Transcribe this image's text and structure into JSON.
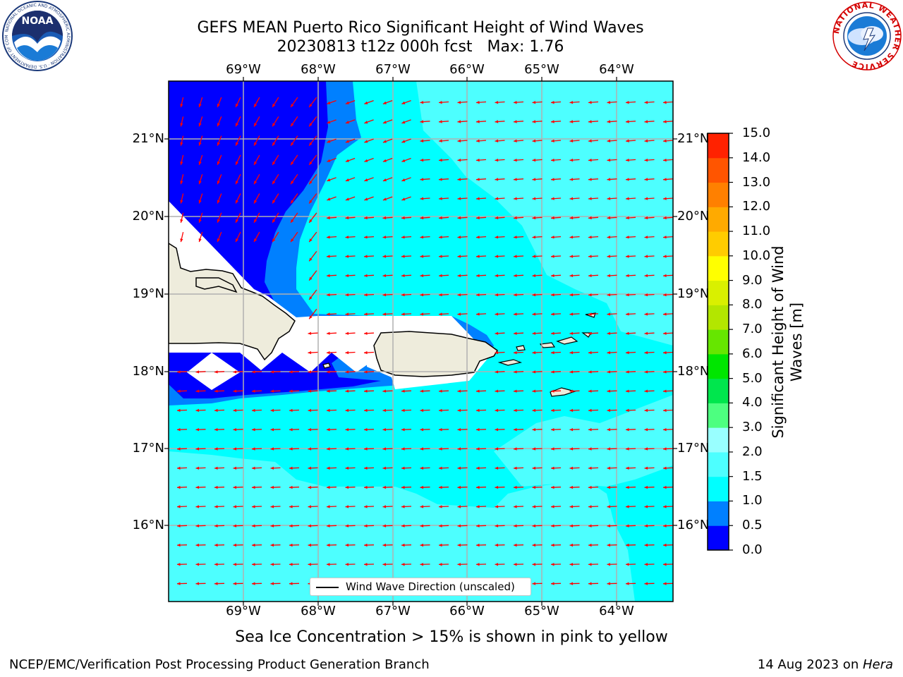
{
  "header": {
    "title_line1": "GEFS MEAN Puerto Rico Significant Height of Wind Waves",
    "date_fcst": "20230813 t12z 000h fcst",
    "max_label": "Max: 1.76"
  },
  "map": {
    "lon_labels": [
      "69°W",
      "68°W",
      "67°W",
      "66°W",
      "65°W",
      "64°W"
    ],
    "lat_labels": [
      "21°N",
      "20°N",
      "19°N",
      "18°N",
      "17°N",
      "16°N"
    ],
    "legend_label": "Wind Wave Direction (unscaled)",
    "arrow_color": "#ff0000",
    "land_color": "#eeecdc",
    "sea_colors": {
      "band_0_0_5": "#0000ff",
      "band_0_5_1_0": "#0080ff",
      "band_1_0_1_5": "#00ffff",
      "band_1_5_2_0": "#4dffff"
    }
  },
  "colorbar": {
    "title": "Significant Height of Wind Waves [m]",
    "ticks": [
      "0.0",
      "0.5",
      "1.0",
      "1.5",
      "2.0",
      "3.0",
      "4.0",
      "5.0",
      "6.0",
      "7.0",
      "8.0",
      "9.0",
      "10.0",
      "11.0",
      "12.0",
      "13.0",
      "14.0",
      "15.0"
    ],
    "colors": [
      "#0000ff",
      "#0080ff",
      "#00ffff",
      "#4dffff",
      "#99ffff",
      "#4dff80",
      "#00e64d",
      "#00e600",
      "#66e600",
      "#b3e600",
      "#d9f000",
      "#ffff00",
      "#ffcc00",
      "#ffaa00",
      "#ff8000",
      "#ff5500",
      "#ff2200",
      "#ff0000"
    ]
  },
  "footer": {
    "sea_ice_note": "Sea Ice Concentration > 15% is shown in pink to yellow",
    "branch": "NCEP/EMC/Verification Post Processing Product Generation Branch",
    "date_prefix": "14 Aug 2023 on ",
    "machine": "Hera"
  },
  "logos": {
    "noaa_text": "NOAA",
    "noaa_ring_text": "NATIONAL OCEANIC AND ATMOSPHERIC ADMINISTRATION · U.S. DEPARTMENT OF COMMERCE",
    "nws_ring_text": "NATIONAL WEATHER SERVICE"
  }
}
